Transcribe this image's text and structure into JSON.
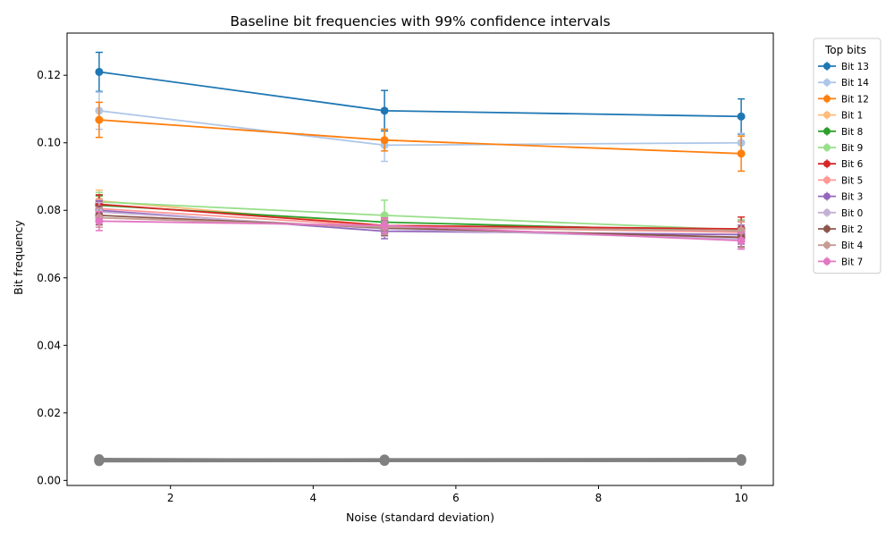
{
  "chart_data": {
    "type": "line",
    "title": "Baseline bit frequencies with 99% confidence intervals",
    "xlabel": "Noise (standard deviation)",
    "ylabel": "Bit frequency",
    "xlim": [
      0.55,
      10.45
    ],
    "ylim": [
      -0.0015,
      0.1325
    ],
    "x": [
      1,
      5,
      10
    ],
    "xticks": [
      2,
      4,
      6,
      8,
      10
    ],
    "xtick_labels": [
      "2",
      "4",
      "6",
      "8",
      "10"
    ],
    "yticks": [
      0.0,
      0.02,
      0.04,
      0.06,
      0.08,
      0.1,
      0.12
    ],
    "ytick_labels": [
      "0.00",
      "0.02",
      "0.04",
      "0.06",
      "0.08",
      "0.10",
      "0.12"
    ],
    "grid": false,
    "legend": {
      "title": "Top bits",
      "placement": "outside-top-right"
    },
    "series": [
      {
        "name": "Bit 13",
        "color": "#1f77b4",
        "values": [
          0.121,
          0.1095,
          0.1078
        ],
        "err": [
          0.0058,
          0.006,
          0.0052
        ]
      },
      {
        "name": "Bit 14",
        "color": "#aec7e8",
        "values": [
          0.1095,
          0.0993,
          0.1
        ],
        "err": [
          0.0055,
          0.0048,
          0.0028
        ]
      },
      {
        "name": "Bit 12",
        "color": "#ff7f0e",
        "values": [
          0.1068,
          0.1008,
          0.0968
        ],
        "err": [
          0.0052,
          0.0032,
          0.0052
        ]
      },
      {
        "name": "Bit 1",
        "color": "#ffbb78",
        "values": [
          0.0828,
          0.0755,
          0.0742
        ],
        "err": [
          0.0032,
          0.0022,
          0.0028
        ]
      },
      {
        "name": "Bit 8",
        "color": "#2ca02c",
        "values": [
          0.0815,
          0.0765,
          0.0738
        ],
        "err": [
          0.0028,
          0.0024,
          0.0028
        ]
      },
      {
        "name": "Bit 9",
        "color": "#98df8a",
        "values": [
          0.0825,
          0.0785,
          0.0742
        ],
        "err": [
          0.0028,
          0.0045,
          0.003
        ]
      },
      {
        "name": "Bit 6",
        "color": "#d62728",
        "values": [
          0.0818,
          0.0755,
          0.0745
        ],
        "err": [
          0.0028,
          0.0022,
          0.0035
        ]
      },
      {
        "name": "Bit 5",
        "color": "#ff9896",
        "values": [
          0.0805,
          0.0752,
          0.0735
        ],
        "err": [
          0.0028,
          0.0022,
          0.003
        ]
      },
      {
        "name": "Bit 3",
        "color": "#9467bd",
        "values": [
          0.08,
          0.0738,
          0.0728
        ],
        "err": [
          0.0028,
          0.0022,
          0.0028
        ]
      },
      {
        "name": "Bit 0",
        "color": "#c5b0d5",
        "values": [
          0.0795,
          0.0745,
          0.0715
        ],
        "err": [
          0.0028,
          0.0022,
          0.0028
        ]
      },
      {
        "name": "Bit 2",
        "color": "#8c564b",
        "values": [
          0.0785,
          0.0748,
          0.072
        ],
        "err": [
          0.0028,
          0.0022,
          0.0028
        ]
      },
      {
        "name": "Bit 4",
        "color": "#c49c94",
        "values": [
          0.0778,
          0.075,
          0.074
        ],
        "err": [
          0.0028,
          0.0022,
          0.0028
        ]
      },
      {
        "name": "Bit 7",
        "color": "#e377c2",
        "values": [
          0.0768,
          0.0755,
          0.071
        ],
        "err": [
          0.0028,
          0.0022,
          0.0025
        ]
      }
    ],
    "background_series": {
      "color": "#808080",
      "values": [
        [
          0.0058,
          0.0058,
          0.0059
        ],
        [
          0.0059,
          0.006,
          0.006
        ],
        [
          0.006,
          0.006,
          0.0061
        ],
        [
          0.0061,
          0.0061,
          0.0061
        ],
        [
          0.0062,
          0.0061,
          0.0062
        ],
        [
          0.006,
          0.0059,
          0.006
        ],
        [
          0.0057,
          0.0058,
          0.0058
        ],
        [
          0.0061,
          0.0062,
          0.0063
        ],
        [
          0.0059,
          0.0061,
          0.0059
        ],
        [
          0.0063,
          0.006,
          0.0062
        ]
      ]
    }
  }
}
